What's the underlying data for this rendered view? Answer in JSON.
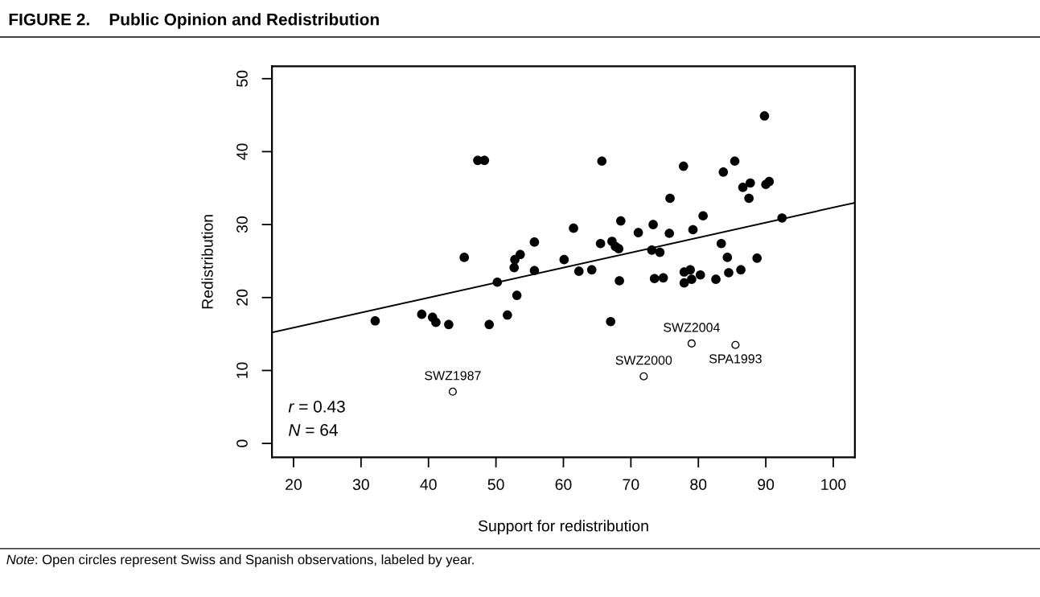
{
  "chart_data": {
    "type": "scatter",
    "title": "FIGURE 2.    Public Opinion and Redistribution",
    "xlabel": "Support for redistribution",
    "ylabel": "Redistribution",
    "xlim": [
      16.8,
      103.2
    ],
    "ylim": [
      -1.9,
      51.7
    ],
    "xticks": [
      20,
      30,
      40,
      50,
      60,
      70,
      80,
      90,
      100
    ],
    "yticks": [
      0,
      10,
      20,
      30,
      40,
      50
    ],
    "grid": false,
    "legend": false,
    "series": [
      {
        "color": "#000000",
        "marker": "circle",
        "x": [
          32.1,
          39.0,
          40.6,
          41.1,
          43.0,
          45.3,
          47.3,
          48.3,
          49.0,
          50.2,
          51.7,
          52.7,
          52.8,
          53.6,
          53.1,
          55.7,
          55.7,
          61.5,
          60.1,
          62.3,
          64.2,
          65.7,
          65.5,
          67.2,
          67.7,
          68.2,
          68.5,
          68.3,
          67.0,
          71.1,
          73.3,
          73.1,
          74.3,
          73.5,
          74.8,
          75.8,
          75.7,
          77.8,
          79.2,
          80.7,
          77.9,
          78.8,
          77.9,
          79.0,
          80.3,
          82.6,
          83.4,
          84.3,
          84.5,
          83.7,
          85.4,
          86.3,
          86.6,
          87.7,
          87.5,
          88.7,
          89.8,
          90.0,
          90.5,
          92.4
        ],
        "values": [
          16.8,
          17.7,
          17.3,
          16.6,
          16.3,
          25.5,
          38.8,
          38.8,
          16.3,
          22.1,
          17.6,
          24.1,
          25.2,
          25.9,
          20.3,
          27.6,
          23.7,
          29.5,
          25.2,
          23.6,
          23.8,
          38.7,
          27.4,
          27.7,
          27.0,
          26.7,
          30.5,
          22.3,
          16.7,
          28.9,
          30.0,
          26.5,
          26.2,
          22.6,
          22.7,
          33.6,
          28.8,
          38.0,
          29.3,
          31.2,
          23.5,
          23.8,
          22.0,
          22.5,
          23.1,
          22.5,
          27.4,
          25.5,
          23.4,
          37.2,
          38.7,
          23.8,
          35.1,
          35.7,
          33.6,
          25.4,
          44.9,
          35.5,
          35.9,
          30.9
        ]
      },
      {
        "color": "#ffffff",
        "marker": "circle",
        "x": [
          43.6,
          71.9,
          79.0,
          85.5
        ],
        "values": [
          7.1,
          9.2,
          13.7,
          13.5
        ]
      },
      {
        "type": "line",
        "color": "#000000",
        "marker": "none",
        "x": [
          16.8,
          103.2
        ],
        "values": [
          15.2,
          33.0
        ]
      }
    ],
    "annotations": [
      {
        "text": "SWZ1987",
        "x": 43.6,
        "y": 7.1
      },
      {
        "text": "SWZ2000",
        "x": 71.9,
        "y": 9.2
      },
      {
        "text": "SWZ2004",
        "x": 79.0,
        "y": 13.7
      },
      {
        "text": "SPA1993",
        "x": 85.5,
        "y": 13.5
      },
      "r = 0.43",
      "N = 64",
      "Note: Open circles represent Swiss and Spanish observations, labeled by year."
    ]
  }
}
